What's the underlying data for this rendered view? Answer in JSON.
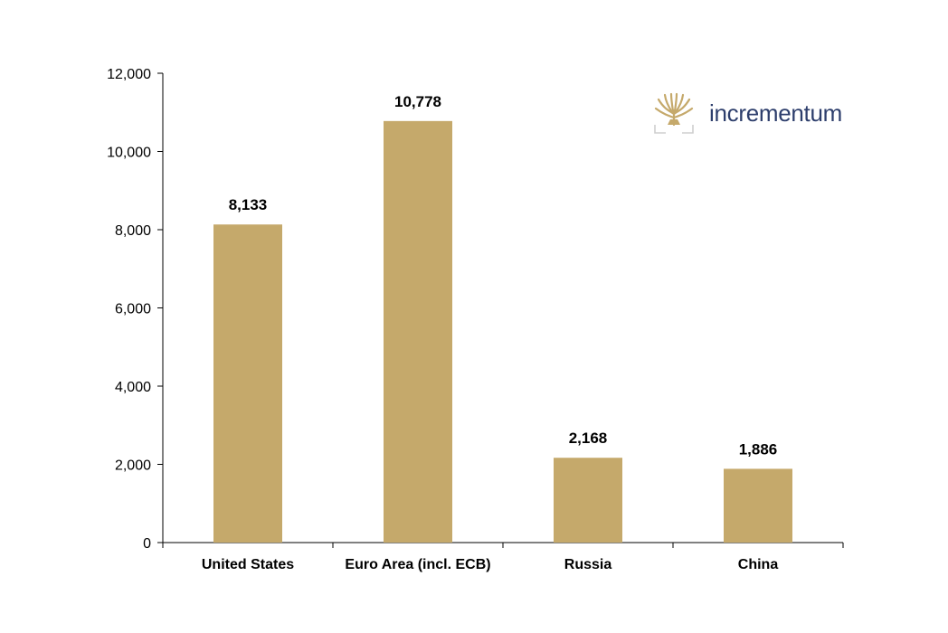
{
  "brand": {
    "name": "incrementum",
    "logo_color": "#c5a96b",
    "text_color": "#2d3e6c"
  },
  "chart_data": {
    "type": "bar",
    "categories": [
      "United States",
      "Euro Area (incl. ECB)",
      "Russia",
      "China"
    ],
    "values": [
      8133,
      10778,
      2168,
      1886
    ],
    "data_labels": [
      "8,133",
      "10,778",
      "2,168",
      "1,886"
    ],
    "title": "",
    "xlabel": "",
    "ylabel": "",
    "ylim": [
      0,
      12000
    ],
    "yticks": [
      0,
      2000,
      4000,
      6000,
      8000,
      10000,
      12000
    ],
    "ytick_labels": [
      "0",
      "2,000",
      "4,000",
      "6,000",
      "8,000",
      "10,000",
      "12,000"
    ],
    "grid": false,
    "bar_color": "#c5a96b"
  }
}
